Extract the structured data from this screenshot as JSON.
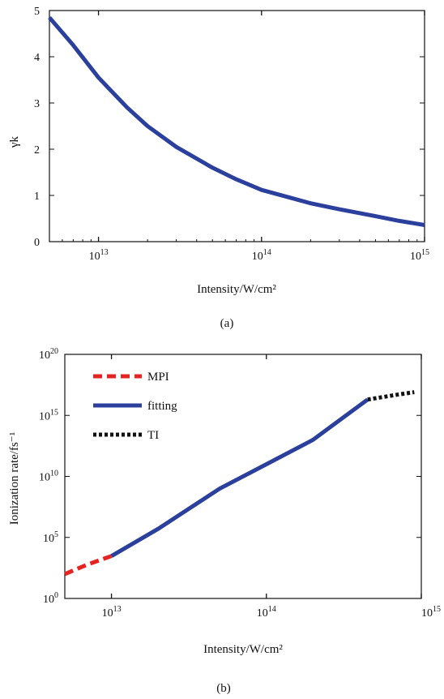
{
  "figure": {
    "panel_a_caption": "(a)",
    "panel_b_caption": "(b)"
  },
  "chart_data": [
    {
      "type": "line",
      "panel": "a",
      "xlabel": "Intensity/W/cm²",
      "ylabel": "γk",
      "xscale": "log",
      "xlim": [
        5000000000000.0,
        1000000000000000.0
      ],
      "ylim": [
        0,
        5
      ],
      "x_ticks": [
        {
          "value": 10000000000000.0,
          "base": "10",
          "exp": "13"
        },
        {
          "value": 100000000000000.0,
          "base": "10",
          "exp": "14"
        },
        {
          "value": 1000000000000000.0,
          "base": "10",
          "exp": "15"
        }
      ],
      "y_ticks": [
        "0",
        "1",
        "2",
        "3",
        "4",
        "5"
      ],
      "y_tick_values": [
        0,
        1,
        2,
        3,
        4,
        5
      ],
      "grid": false,
      "series": [
        {
          "color": "#2b3f9c",
          "x": [
            5000000000000.0,
            7000000000000.0,
            10000000000000.0,
            15000000000000.0,
            20000000000000.0,
            30000000000000.0,
            50000000000000.0,
            70000000000000.0,
            100000000000000.0,
            150000000000000.0,
            200000000000000.0,
            300000000000000.0,
            500000000000000.0,
            700000000000000.0,
            1000000000000000.0
          ],
          "y": [
            4.85,
            4.25,
            3.55,
            2.9,
            2.5,
            2.05,
            1.6,
            1.35,
            1.12,
            0.95,
            0.83,
            0.7,
            0.55,
            0.45,
            0.36
          ]
        }
      ]
    },
    {
      "type": "line",
      "panel": "b",
      "xlabel": "Intensity/W/cm²",
      "ylabel": "Ionization rate/fs⁻¹",
      "xscale": "log",
      "yscale": "log",
      "xlim": [
        5000000000000.0,
        1000000000000000.0
      ],
      "ylim": [
        1,
        1e+20
      ],
      "x_ticks": [
        {
          "value": 10000000000000.0,
          "base": "10",
          "exp": "13"
        },
        {
          "value": 100000000000000.0,
          "base": "10",
          "exp": "14"
        },
        {
          "value": 1000000000000000.0,
          "base": "10",
          "exp": "15"
        }
      ],
      "y_ticks": [
        {
          "value": 1,
          "base": "10",
          "exp": "0"
        },
        {
          "value": 100000.0,
          "base": "10",
          "exp": "5"
        },
        {
          "value": 10000000000.0,
          "base": "10",
          "exp": "10"
        },
        {
          "value": 1000000000000000.0,
          "base": "10",
          "exp": "15"
        },
        {
          "value": 1e+20,
          "base": "10",
          "exp": "20"
        }
      ],
      "grid": false,
      "legend_position": "top-left",
      "series": [
        {
          "name": "MPI",
          "color": "#e52421",
          "style": "dashed",
          "x": [
            5000000000000.0,
            7000000000000.0,
            10000000000000.0
          ],
          "y": [
            100.0,
            600.0,
            3000.0
          ]
        },
        {
          "name": "fitting",
          "color": "#2b3f9c",
          "style": "solid",
          "x": [
            10000000000000.0,
            20000000000000.0,
            50000000000000.0,
            100000000000000.0,
            200000000000000.0,
            450000000000000.0
          ],
          "y": [
            3000.0,
            500000.0,
            1000000000.0,
            100000000000.0,
            10000000000000.0,
            2e+16
          ]
        },
        {
          "name": "TI",
          "color": "#111111",
          "style": "dotted",
          "x": [
            450000000000000.0,
            700000000000000.0,
            900000000000000.0
          ],
          "y": [
            2e+16,
            5e+16,
            8e+16
          ]
        }
      ]
    }
  ]
}
